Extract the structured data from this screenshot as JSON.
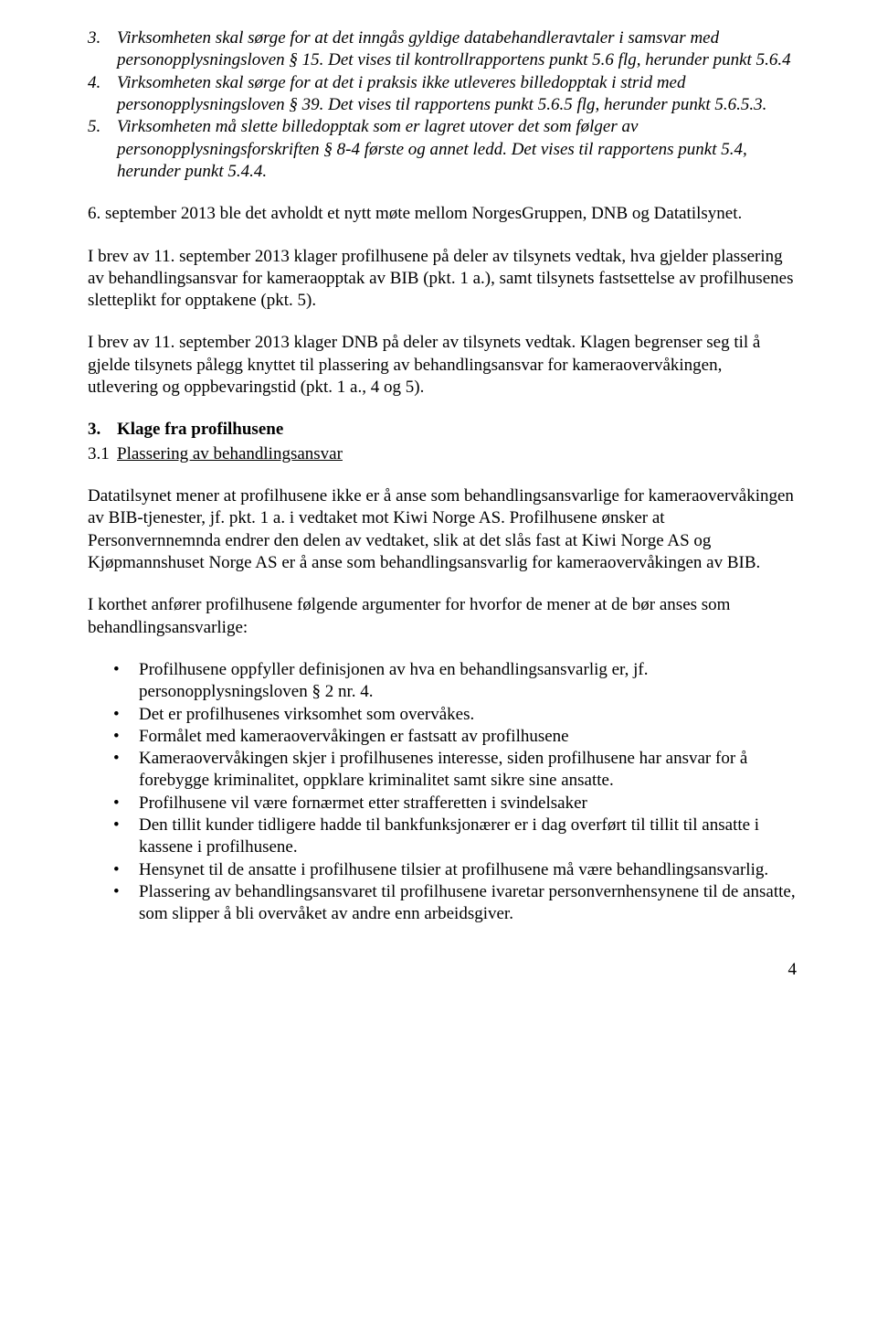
{
  "numbered_items": {
    "item3": "Virksomheten skal sørge for at det inngås gyldige databehandleravtaler i samsvar med personopplysningsloven § 15. Det vises til kontrollrapportens punkt 5.6 flg, herunder punkt 5.6.4",
    "item4": "Virksomheten skal sørge for at det i praksis ikke utleveres billedopptak i strid med personopplysningsloven § 39. Det vises til rapportens punkt 5.6.5 flg, herunder punkt 5.6.5.3.",
    "item5": "Virksomheten må slette billedopptak som er lagret utover det som følger av personopplysningsforskriften § 8-4 første og annet ledd. Det vises til rapportens punkt 5.4, herunder punkt 5.4.4."
  },
  "paragraphs": {
    "p1": "6. september 2013 ble det avholdt et nytt møte mellom NorgesGruppen, DNB og Datatilsynet.",
    "p2": "I brev av 11. september 2013 klager profilhusene på deler av tilsynets vedtak, hva gjelder plassering av behandlingsansvar for kameraopptak av BIB (pkt. 1 a.), samt tilsynets fastsettelse av profilhusenes sletteplikt for opptakene (pkt. 5).",
    "p3": "I brev av 11. september 2013 klager DNB på deler av tilsynets vedtak. Klagen begrenser seg til å gjelde tilsynets pålegg knyttet til plassering av behandlingsansvar for kameraovervåkingen, utlevering og oppbevaringstid (pkt. 1 a., 4 og 5).",
    "p4": "Datatilsynet mener at profilhusene ikke er å anse som behandlingsansvarlige for kameraovervåkingen av BIB-tjenester, jf. pkt. 1 a. i vedtaket mot Kiwi Norge AS. Profilhusene ønsker at Personvernnemnda endrer den delen av vedtaket, slik at det slås fast at Kiwi Norge AS og Kjøpmannshuset Norge AS er å anse som behandlingsansvarlig for kameraovervåkingen av BIB.",
    "p5": "I korthet anfører profilhusene følgende argumenter for hvorfor de mener at de bør anses som behandlingsansvarlige:"
  },
  "section": {
    "num": "3.",
    "title": "Klage fra profilhusene",
    "sub_num": "3.1",
    "sub_title": "Plassering av behandlingsansvar"
  },
  "bullets": [
    "Profilhusene oppfyller definisjonen av hva en behandlingsansvarlig er, jf. personopplysningsloven § 2 nr. 4.",
    "Det er profilhusenes virksomhet som overvåkes.",
    "Formålet med kameraovervåkingen er fastsatt av profilhusene",
    "Kameraovervåkingen skjer i profilhusenes interesse, siden profilhusene har ansvar for å forebygge kriminalitet, oppklare kriminalitet samt sikre sine ansatte.",
    "Profilhusene vil være fornærmet etter strafferetten i svindelsaker",
    "Den tillit kunder tidligere hadde til bankfunksjonærer er i dag overført til tillit til ansatte i kassene i profilhusene.",
    "Hensynet til de ansatte i profilhusene tilsier at profilhusene må være behandlingsansvarlig.",
    "Plassering av behandlingsansvaret til profilhusene ivaretar personvernhensynene til de ansatte, som slipper å bli overvåket av andre enn arbeidsgiver."
  ],
  "page_number": "4"
}
